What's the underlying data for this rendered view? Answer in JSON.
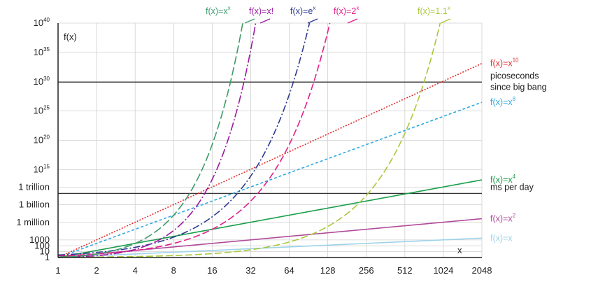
{
  "chart_data": {
    "type": "line",
    "title": "",
    "xlabel": "x",
    "ylabel": "f(x)",
    "xscale": "log2",
    "yscale": "log10",
    "xlim": [
      1,
      2048
    ],
    "ylim": [
      1,
      1e+40
    ],
    "grid": true,
    "x_ticks": [
      "1",
      "2",
      "4",
      "8",
      "16",
      "32",
      "64",
      "128",
      "256",
      "512",
      "1024",
      "2048"
    ],
    "y_ticks": [
      {
        "value": 1e+40,
        "base": "10",
        "exp": "40"
      },
      {
        "value": 1e+35,
        "base": "10",
        "exp": "35"
      },
      {
        "value": 1e+30,
        "base": "10",
        "exp": "30"
      },
      {
        "value": 1e+25,
        "base": "10",
        "exp": "25"
      },
      {
        "value": 1e+20,
        "base": "10",
        "exp": "20"
      },
      {
        "value": 1000000000000000.0,
        "base": "10",
        "exp": "15"
      },
      {
        "value": 1000000000000.0,
        "base": "1 trillion",
        "exp": ""
      },
      {
        "value": 1000000000.0,
        "base": "1 billion",
        "exp": ""
      },
      {
        "value": 1000000.0,
        "base": "1 million",
        "exp": ""
      },
      {
        "value": 1000,
        "base": "1000",
        "exp": ""
      },
      {
        "value": 100,
        "base": "100",
        "exp": ""
      },
      {
        "value": 10,
        "base": "10",
        "exp": ""
      },
      {
        "value": 1,
        "base": "1",
        "exp": ""
      }
    ],
    "reference_lines": [
      {
        "value": 8.64e+29,
        "label": [
          "picoseconds",
          "since big bang"
        ],
        "color": "#333333"
      },
      {
        "value": 86400000000.0,
        "label": [
          "ms per day"
        ],
        "color": "#333333"
      }
    ],
    "series": [
      {
        "name": "f(x)=x",
        "label_base": "f(x)=x",
        "label_sup": "",
        "func": "x",
        "color": "#9dd3ea",
        "dash": "none"
      },
      {
        "name": "f(x)=x2",
        "label_base": "f(x)=x",
        "label_sup": "2",
        "func": "x2",
        "color": "#b04a9a",
        "dash": "none"
      },
      {
        "name": "f(x)=x4",
        "label_base": "f(x)=x",
        "label_sup": "4",
        "func": "x4",
        "color": "#1a9e4a",
        "dash": "none"
      },
      {
        "name": "f(x)=x8",
        "label_base": "f(x)=x",
        "label_sup": "8",
        "func": "x8",
        "color": "#2ea8e0",
        "dash": "4 3"
      },
      {
        "name": "f(x)=x10",
        "label_base": "f(x)=x",
        "label_sup": "10",
        "func": "x10",
        "color": "#e03030",
        "dash": "2 2"
      },
      {
        "name": "f(x)=1.1x",
        "label_base": "f(x)=1.1",
        "label_sup": "x",
        "func": "1.1^x",
        "color": "#a8c83c",
        "dash": "10 4"
      },
      {
        "name": "f(x)=2x",
        "label_base": "f(x)=2",
        "label_sup": "x",
        "func": "2^x",
        "color": "#e0208a",
        "dash": "10 4"
      },
      {
        "name": "f(x)=ex",
        "label_base": "f(x)=e",
        "label_sup": "x",
        "func": "e^x",
        "color": "#2e3a90",
        "dash": "10 3 2 3"
      },
      {
        "name": "f(x)=x!",
        "label_base": "f(x)=x!",
        "label_sup": "",
        "func": "x!",
        "color": "#9a1aa0",
        "dash": "12 3 2 3"
      },
      {
        "name": "f(x)=xx",
        "label_base": "f(x)=x",
        "label_sup": "x",
        "func": "x^x",
        "color": "#3f9a6a",
        "dash": "12 4"
      }
    ]
  }
}
